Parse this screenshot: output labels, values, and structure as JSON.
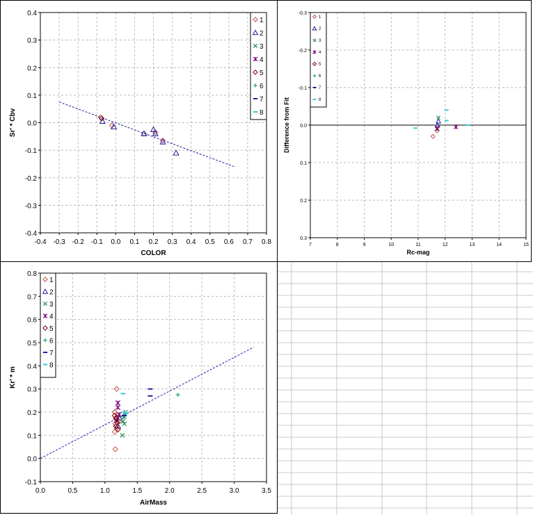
{
  "chart_data": [
    {
      "type": "scatter",
      "xlabel": "COLOR",
      "ylabel": "Sr' * Cbv",
      "xlim": [
        -0.4,
        0.8
      ],
      "ylim": [
        -0.4,
        0.4
      ],
      "x_ticks": [
        "-0.4",
        "-0.3",
        "-0.2",
        "-0.1",
        "0.0",
        "0.1",
        "0.2",
        "0.3",
        "0.4",
        "0.5",
        "0.6",
        "0.7",
        "0.8"
      ],
      "y_ticks": [
        "0.4",
        "0.3",
        "0.2",
        "0.1",
        "0.0",
        "-0.1",
        "-0.2",
        "-0.3",
        "-0.4"
      ],
      "grid": true,
      "legend_position": "right",
      "legend": [
        "1",
        "2",
        "3",
        "4",
        "5",
        "6",
        "7",
        "8"
      ],
      "series": [
        {
          "name": "1",
          "marker": "diamond",
          "color": "#c0504d",
          "points": [
            [
              -0.08,
              0.02
            ],
            [
              -0.02,
              -0.01
            ],
            [
              0.15,
              -0.04
            ],
            [
              0.21,
              -0.035
            ],
            [
              0.25,
              -0.065
            ]
          ]
        },
        {
          "name": "2",
          "marker": "triangle",
          "color": "#1f1fa0",
          "points": [
            [
              -0.07,
              0.005
            ],
            [
              -0.01,
              -0.015
            ],
            [
              0.15,
              -0.04
            ],
            [
              0.2,
              -0.025
            ],
            [
              0.21,
              -0.04
            ],
            [
              0.25,
              -0.07
            ],
            [
              0.32,
              -0.11
            ]
          ]
        },
        {
          "name": "5",
          "marker": "diamond",
          "color": "#800000",
          "points": [
            [
              -0.075,
              0.015
            ]
          ]
        }
      ],
      "fit_line": {
        "from": [
          -0.3,
          0.075
        ],
        "to": [
          0.63,
          -0.16
        ],
        "color": "#1f1fa0"
      }
    },
    {
      "type": "scatter",
      "xlabel": "Rc-mag",
      "ylabel": "Difference from Fit",
      "xlim": [
        7,
        15
      ],
      "ylim": [
        -0.3,
        0.3
      ],
      "y_reversed": true,
      "x_ticks": [
        "7",
        "8",
        "9",
        "10",
        "11",
        "12",
        "13",
        "14",
        "15"
      ],
      "y_ticks": [
        "-0.3",
        "-0.2",
        "-0.1",
        "0.0",
        "0.1",
        "0.2",
        "0.3"
      ],
      "grid": true,
      "legend_position": "top-left",
      "legend": [
        "1",
        "2",
        "3",
        "4",
        "5",
        "6",
        "7",
        "8"
      ],
      "series": [
        {
          "name": "1",
          "marker": "diamond",
          "color": "#c0504d",
          "points": [
            [
              11.7,
              0.005
            ],
            [
              11.7,
              0.015
            ],
            [
              11.55,
              0.03
            ]
          ]
        },
        {
          "name": "2",
          "marker": "triangle",
          "color": "#1f1fa0",
          "points": [
            [
              11.75,
              -0.01
            ],
            [
              11.72,
              0.0
            ]
          ]
        },
        {
          "name": "3",
          "marker": "x",
          "color": "#2e8b57",
          "points": [
            [
              11.75,
              -0.02
            ],
            [
              11.72,
              0.01
            ]
          ]
        },
        {
          "name": "4",
          "marker": "star",
          "color": "#800080",
          "points": [
            [
              12.4,
              0.005
            ],
            [
              11.7,
              0.01
            ]
          ]
        },
        {
          "name": "8",
          "marker": "dash",
          "color": "#3ec8d8",
          "points": [
            [
              12.05,
              -0.04
            ],
            [
              12.05,
              -0.012
            ],
            [
              10.9,
              0.008
            ],
            [
              12.85,
              0.0
            ]
          ]
        }
      ],
      "zero_line": true
    },
    {
      "type": "scatter",
      "xlabel": "AirMass",
      "ylabel": "Kr' * m",
      "xlim": [
        0.0,
        3.5
      ],
      "ylim": [
        -0.1,
        0.8
      ],
      "x_ticks": [
        "0.0",
        "0.5",
        "1.0",
        "1.5",
        "2.0",
        "2.5",
        "3.0",
        "3.5"
      ],
      "y_ticks": [
        "0.8",
        "0.7",
        "0.6",
        "0.5",
        "0.4",
        "0.3",
        "0.2",
        "0.1",
        "0.0",
        "-0.1"
      ],
      "grid": true,
      "legend_position": "top-left",
      "legend": [
        "1",
        "2",
        "3",
        "4",
        "5",
        "6",
        "7",
        "8"
      ],
      "series": [
        {
          "name": "1",
          "marker": "diamond",
          "color": "#c0504d",
          "points": [
            [
              1.18,
              0.3
            ],
            [
              1.15,
              0.2
            ],
            [
              1.17,
              0.17
            ],
            [
              1.16,
              0.15
            ],
            [
              1.18,
              0.13
            ],
            [
              1.15,
              0.115
            ],
            [
              1.2,
              0.185
            ],
            [
              1.22,
              0.16
            ],
            [
              1.16,
              0.04
            ]
          ]
        },
        {
          "name": "2",
          "marker": "triangle",
          "color": "#1f1fa0",
          "points": [
            [
              1.2,
              0.14
            ],
            [
              1.22,
              0.175
            ]
          ]
        },
        {
          "name": "3",
          "marker": "x",
          "color": "#2e8b57",
          "points": [
            [
              1.28,
              0.16
            ],
            [
              1.3,
              0.15
            ],
            [
              1.27,
              0.1
            ],
            [
              1.32,
              0.2
            ],
            [
              1.3,
              0.18
            ]
          ]
        },
        {
          "name": "4",
          "marker": "star",
          "color": "#800080",
          "points": [
            [
              1.2,
              0.24
            ],
            [
              1.2,
              0.22
            ],
            [
              1.22,
              0.19
            ],
            [
              1.18,
              0.165
            ]
          ]
        },
        {
          "name": "5",
          "marker": "diamond",
          "color": "#800000",
          "points": [
            [
              1.15,
              0.185
            ],
            [
              1.17,
              0.175
            ],
            [
              1.19,
              0.155
            ],
            [
              1.17,
              0.14
            ],
            [
              1.2,
              0.125
            ]
          ]
        },
        {
          "name": "6",
          "marker": "plus",
          "color": "#1aa37a",
          "points": [
            [
              2.13,
              0.275
            ],
            [
              1.3,
              0.19
            ],
            [
              1.28,
              0.175
            ]
          ]
        },
        {
          "name": "7",
          "marker": "dash",
          "color": "#1f1fa0",
          "points": [
            [
              1.7,
              0.3
            ],
            [
              1.7,
              0.27
            ],
            [
              1.3,
              0.185
            ]
          ]
        },
        {
          "name": "8",
          "marker": "dash",
          "color": "#3ec8d8",
          "points": [
            [
              1.28,
              0.28
            ],
            [
              1.3,
              0.2
            ],
            [
              1.32,
              0.195
            ]
          ]
        }
      ],
      "fit_line": {
        "from": [
          0.0,
          0.0
        ],
        "to": [
          3.3,
          0.48
        ],
        "color": "#1f1fa0"
      }
    }
  ]
}
